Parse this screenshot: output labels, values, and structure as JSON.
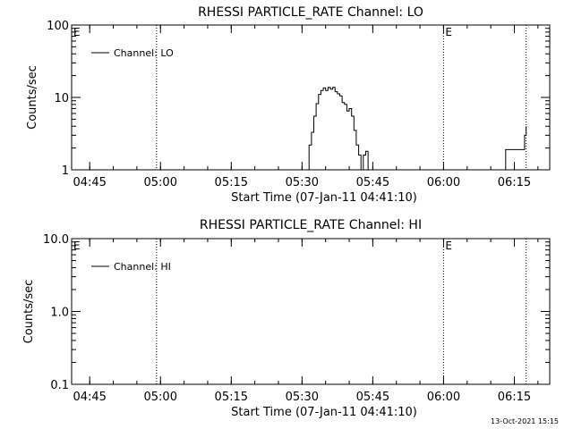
{
  "chart_data": [
    {
      "type": "line",
      "title": "RHESSI PARTICLE_RATE Channel: LO",
      "xlabel": "Start Time (07-Jan-11 04:41:10)",
      "ylabel": "Counts/sec",
      "yscale": "log",
      "ylim": [
        1,
        100
      ],
      "ytick_values": [
        1,
        10,
        100
      ],
      "ytick_labels": [
        "1",
        "10",
        "100"
      ],
      "x_range": [
        "04:41:10",
        "06:22:30"
      ],
      "xtick_values": [
        "04:45",
        "05:00",
        "05:15",
        "05:30",
        "05:45",
        "06:00",
        "06:15"
      ],
      "xtick_labels": [
        "04:45",
        "05:00",
        "05:15",
        "05:30",
        "05:45",
        "06:00",
        "06:15"
      ],
      "vlines": [
        "04:59:10",
        "06:00:00",
        "06:17:30"
      ],
      "markers": [
        {
          "text": "E",
          "x": "04:41:10"
        },
        {
          "text": "E",
          "x": "06:00:00"
        }
      ],
      "legend": {
        "entries": [
          "Channel: LO"
        ],
        "position": "top-left"
      },
      "series": [
        {
          "name": "Channel: LO",
          "segments": [
            {
              "x": [
                "05:31:00",
                "05:31:30",
                "05:32:00",
                "05:32:30",
                "05:33:00",
                "05:33:30",
                "05:34:00",
                "05:34:30",
                "05:35:00",
                "05:35:30",
                "05:36:00",
                "05:36:30",
                "05:37:00",
                "05:37:30",
                "05:38:00",
                "05:38:30",
                "05:39:00",
                "05:39:30",
                "05:40:00",
                "05:40:30",
                "05:41:00",
                "05:41:30",
                "05:42:00",
                "05:42:30",
                "05:43:00",
                "05:43:30",
                "05:44:00"
              ],
              "y": [
                1,
                2.2,
                3.3,
                5.5,
                8.2,
                11,
                12.5,
                13.5,
                12.5,
                13.8,
                13,
                13.8,
                12,
                11.2,
                10.5,
                8.5,
                8,
                6.5,
                7,
                5.5,
                3.5,
                2.2,
                1.6,
                1,
                1.6,
                1.8,
                1
              ]
            },
            {
              "x": [
                "06:12:40",
                "06:13:10",
                "06:14:00",
                "06:15:00",
                "06:16:00",
                "06:16:40",
                "06:17:10",
                "06:17:30"
              ],
              "y": [
                1,
                1.9,
                1.9,
                1.9,
                1.9,
                1.9,
                3,
                4
              ]
            }
          ]
        }
      ]
    },
    {
      "type": "line",
      "title": "RHESSI PARTICLE_RATE Channel: HI",
      "xlabel": "Start Time (07-Jan-11 04:41:10)",
      "ylabel": "Counts/sec",
      "yscale": "log",
      "ylim": [
        0.1,
        10
      ],
      "ytick_values": [
        0.1,
        1,
        10
      ],
      "ytick_labels": [
        "0.1",
        "1.0",
        "10.0"
      ],
      "x_range": [
        "04:41:10",
        "06:22:30"
      ],
      "xtick_values": [
        "04:45",
        "05:00",
        "05:15",
        "05:30",
        "05:45",
        "06:00",
        "06:15"
      ],
      "xtick_labels": [
        "04:45",
        "05:00",
        "05:15",
        "05:30",
        "05:45",
        "06:00",
        "06:15"
      ],
      "vlines": [
        "04:59:10",
        "06:00:00",
        "06:17:30"
      ],
      "markers": [
        {
          "text": "E",
          "x": "04:41:10"
        },
        {
          "text": "E",
          "x": "06:00:00"
        }
      ],
      "legend": {
        "entries": [
          "Channel: HI"
        ],
        "position": "top-left"
      },
      "series": [
        {
          "name": "Channel: HI",
          "segments": []
        }
      ]
    }
  ],
  "footer": {
    "timestamp": "13-Oct-2021 15:15"
  }
}
